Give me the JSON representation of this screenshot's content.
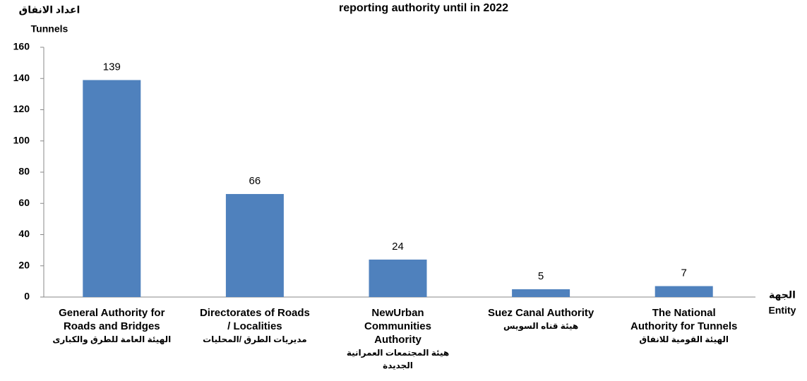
{
  "chart_data": {
    "type": "bar",
    "title": "reporting authority until in 2022",
    "y_label": [
      "اعداد الانفاق",
      "Tunnels"
    ],
    "x_label": [
      "الجهة",
      "Entity"
    ],
    "categories": [
      [
        "General Authority for",
        "Roads and Bridges",
        "الهيئة العامة للطرق والكبارى"
      ],
      [
        "Directorates of Roads",
        "/ Localities",
        "مديريات الطرق /المحليات"
      ],
      [
        "NewUrban",
        "Communities",
        "Authority",
        "هيئة المجتمعات العمرانية",
        "الجديدة"
      ],
      [
        "Suez Canal Authority",
        "هيئة قناه السويس"
      ],
      [
        "The National",
        "Authority for Tunnels",
        "الهيئة القومية للانفاق"
      ]
    ],
    "values": [
      139,
      66,
      24,
      5,
      7
    ],
    "color": "#4f81bd",
    "ylim": [
      0,
      160
    ],
    "yticks": [
      0,
      20,
      40,
      60,
      80,
      100,
      120,
      140,
      160
    ],
    "grid": false
  }
}
